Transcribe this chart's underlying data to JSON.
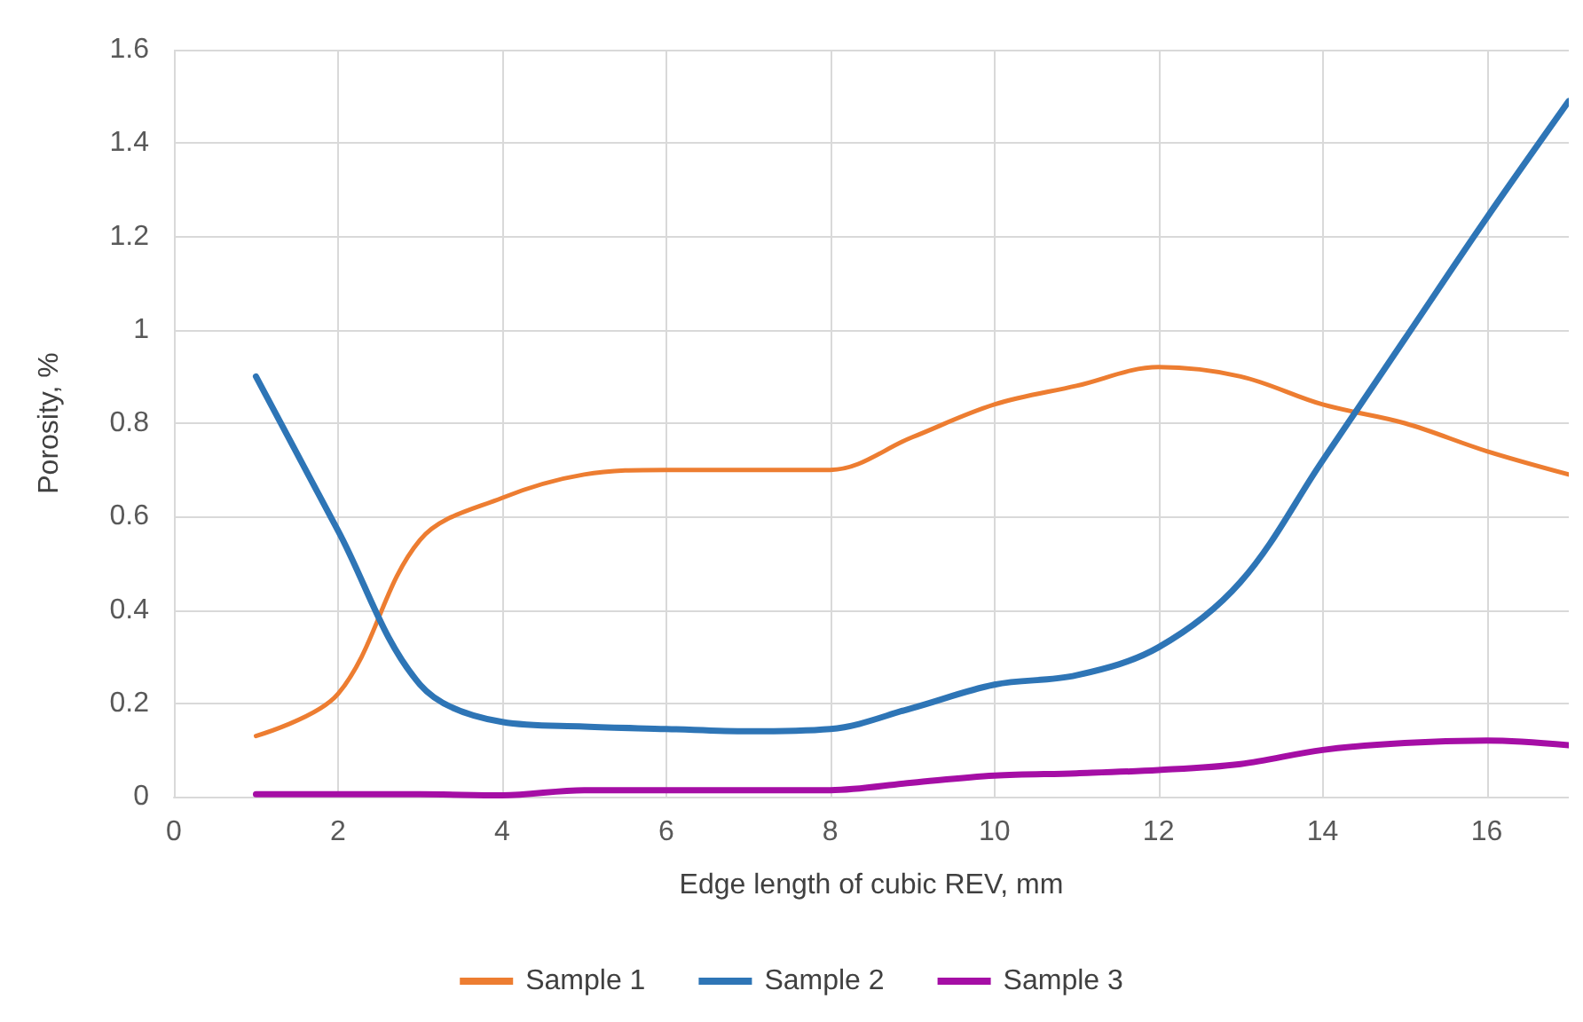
{
  "chart_data": {
    "type": "line",
    "xlabel": "Edge length of cubic REV, mm",
    "ylabel": "Porosity, %",
    "x": [
      1,
      2,
      3,
      4,
      5,
      6,
      7,
      8,
      9,
      10,
      11,
      12,
      13,
      14,
      15,
      16,
      17
    ],
    "series": [
      {
        "name": "Sample 1",
        "color": "#ed7d31",
        "values": [
          0.13,
          0.22,
          0.55,
          0.64,
          0.69,
          0.7,
          0.7,
          0.7,
          0.77,
          0.84,
          0.88,
          0.92,
          0.9,
          0.84,
          0.8,
          0.74,
          0.69
        ]
      },
      {
        "name": "Sample 2",
        "color": "#2e75b6",
        "values": [
          0.9,
          0.57,
          0.24,
          0.16,
          0.15,
          0.145,
          0.14,
          0.145,
          0.19,
          0.24,
          0.26,
          0.32,
          0.46,
          0.72,
          0.98,
          1.24,
          1.49
        ]
      },
      {
        "name": "Sample 3",
        "color": "#a50ea5",
        "values": [
          0.005,
          0.005,
          0.005,
          0.003,
          0.014,
          0.014,
          0.014,
          0.014,
          0.03,
          0.045,
          0.05,
          0.057,
          0.07,
          0.1,
          0.115,
          0.12,
          0.11
        ]
      }
    ],
    "xlim": [
      0,
      17
    ],
    "xticks": [
      0,
      2,
      4,
      6,
      8,
      10,
      12,
      14,
      16
    ],
    "ylim": [
      0,
      1.6
    ],
    "yticks": [
      0,
      0.2,
      0.4,
      0.6,
      0.8,
      1,
      1.2,
      1.4,
      1.6
    ],
    "grid": true,
    "legend": "bottom",
    "marker": "none",
    "line_style": "solid"
  }
}
